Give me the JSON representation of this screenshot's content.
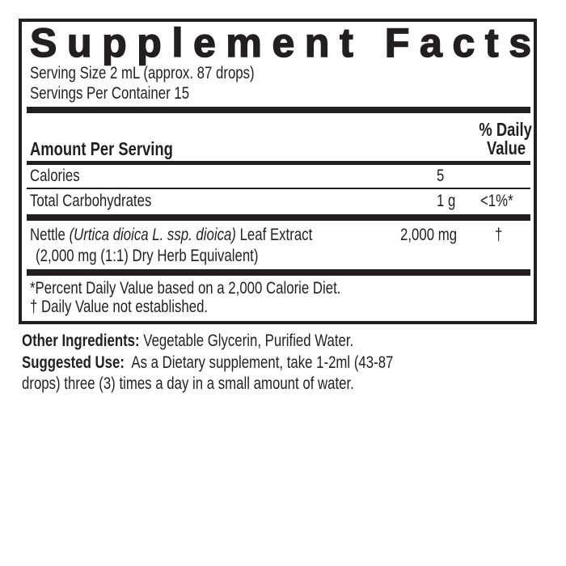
{
  "label": {
    "title": "Supplement Facts",
    "serving_size": "Serving Size 2 mL (approx. 87 drops)",
    "servings_per_container": "Servings Per Container 15",
    "amount_header": "Amount Per Serving",
    "daily_value_header_1": "% Daily",
    "daily_value_header_2": "Value",
    "rows": [
      {
        "name": "Calories",
        "amount": "5",
        "dv": ""
      },
      {
        "name": "Total Carbohydrates",
        "amount": "1 g",
        "dv": "<1%*"
      }
    ],
    "ingredient": {
      "name": "Nettle",
      "latin": "(Urtica dioica L. ssp. dioica)",
      "part": "Leaf Extract",
      "amount": "2,000 mg",
      "dv": "†",
      "equivalent": "(2,000 mg (1:1) Dry Herb Equivalent)"
    },
    "footnote_1": "*Percent Daily Value based on a 2,000 Calorie Diet.",
    "footnote_2": "† Daily Value not established."
  },
  "other_ingredients": {
    "label": "Other Ingredients:",
    "text": "Vegetable Glycerin, Purified Water."
  },
  "suggested_use": {
    "label": "Suggested Use:",
    "text_line_1": "As a Dietary supplement, take 1-2ml (43-87",
    "text_line_2": "drops) three (3) times a day in a small amount of water."
  }
}
